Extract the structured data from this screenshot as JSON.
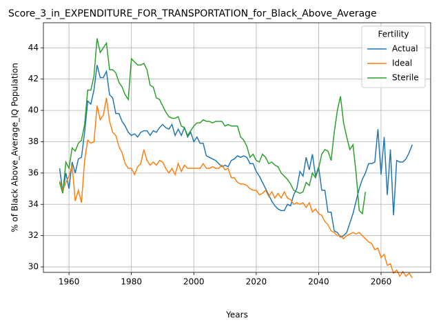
{
  "chart_data": {
    "type": "line",
    "title": "Score_3_in_EXPENDITURE_FOR_TRANSPORTATION_for_Black_Above_Average",
    "x_label": "Years",
    "y_label": "% of Black Above_Average_IQ Population",
    "legend_title": "Fertility",
    "legend": "upper right",
    "grid": true,
    "x": [
      1957,
      1958,
      1959,
      1960,
      1961,
      1962,
      1963,
      1964,
      1965,
      1966,
      1967,
      1968,
      1969,
      1970,
      1971,
      1972,
      1973,
      1974,
      1975,
      1976,
      1977,
      1978,
      1979,
      1980,
      1981,
      1982,
      1983,
      1984,
      1985,
      1986,
      1987,
      1988,
      1989,
      1990,
      1991,
      1992,
      1993,
      1994,
      1995,
      1996,
      1997,
      1998,
      1999,
      2000,
      2001,
      2002,
      2003,
      2004,
      2005,
      2006,
      2007,
      2008,
      2009,
      2010,
      2011,
      2012,
      2013,
      2014,
      2015,
      2016,
      2017,
      2018,
      2019,
      2020,
      2021,
      2022,
      2023,
      2024,
      2025,
      2026,
      2027,
      2028,
      2029,
      2030,
      2031,
      2032,
      2033,
      2034,
      2035,
      2036,
      2037,
      2038,
      2039,
      2040,
      2041,
      2042,
      2043,
      2044,
      2045,
      2046,
      2047,
      2048,
      2049,
      2050,
      2051,
      2052,
      2053,
      2054,
      2055,
      2056,
      2057,
      2058,
      2059,
      2060,
      2061,
      2062,
      2063,
      2064,
      2065,
      2066,
      2067,
      2068,
      2069,
      2070
    ],
    "series": [
      {
        "name": "Actual",
        "color": "#1f77b4",
        "values": [
          36.3,
          34.8,
          36.0,
          35.0,
          36.7,
          36.0,
          36.9,
          37.0,
          38.6,
          40.6,
          40.4,
          41.3,
          42.9,
          42.1,
          42.1,
          42.5,
          41.0,
          40.8,
          39.8,
          39.8,
          39.3,
          39.0,
          38.6,
          38.4,
          38.5,
          38.3,
          38.6,
          38.7,
          38.7,
          38.4,
          38.7,
          38.6,
          38.9,
          39.1,
          38.9,
          38.8,
          39.1,
          38.4,
          38.8,
          38.4,
          38.9,
          38.3,
          38.6,
          38.0,
          38.3,
          37.9,
          37.9,
          37.1,
          37.0,
          36.9,
          36.8,
          36.6,
          36.4,
          36.5,
          36.4,
          36.8,
          36.9,
          37.1,
          37.0,
          37.1,
          37.0,
          36.6,
          36.6,
          36.1,
          35.8,
          35.4,
          35.0,
          34.6,
          34.2,
          33.9,
          33.7,
          33.6,
          33.6,
          34.0,
          33.9,
          34.6,
          35.0,
          36.1,
          35.8,
          37.0,
          36.2,
          37.2,
          35.8,
          36.4,
          34.9,
          34.9,
          33.5,
          33.5,
          32.3,
          32.2,
          31.9,
          32.0,
          32.2,
          32.8,
          33.4,
          34.2,
          35.0,
          35.6,
          36.0,
          36.6,
          36.6,
          36.7,
          38.8,
          35.9,
          38.3,
          34.6,
          37.5,
          33.3,
          36.8,
          36.7,
          36.7,
          36.9,
          37.3,
          37.8
        ]
      },
      {
        "name": "Ideal",
        "color": "#ff7f0e",
        "values": [
          35.5,
          34.9,
          35.4,
          35.8,
          36.5,
          34.2,
          34.9,
          34.1,
          36.8,
          38.1,
          37.9,
          38.0,
          40.3,
          39.4,
          39.7,
          40.8,
          39.3,
          38.6,
          38.4,
          37.7,
          37.3,
          36.6,
          36.3,
          36.3,
          35.9,
          36.4,
          36.6,
          37.5,
          36.8,
          36.5,
          36.7,
          36.5,
          36.8,
          36.7,
          36.3,
          36.0,
          36.3,
          35.9,
          36.6,
          36.1,
          36.5,
          36.3,
          36.3,
          36.3,
          36.3,
          36.3,
          36.6,
          36.3,
          36.3,
          36.4,
          36.3,
          36.3,
          36.5,
          36.2,
          36.3,
          35.7,
          35.7,
          35.4,
          35.3,
          35.3,
          35.2,
          35.0,
          34.9,
          34.9,
          34.6,
          34.7,
          34.9,
          34.5,
          34.8,
          34.4,
          34.7,
          34.4,
          34.8,
          34.4,
          34.3,
          34.0,
          34.1,
          34.0,
          34.1,
          33.8,
          34.1,
          33.5,
          33.7,
          33.4,
          33.3,
          32.9,
          32.7,
          32.3,
          32.2,
          32.0,
          32.0,
          31.8,
          32.0,
          32.1,
          32.2,
          32.1,
          32.2,
          32.0,
          31.8,
          31.6,
          31.5,
          31.1,
          31.2,
          30.6,
          30.8,
          30.1,
          30.2,
          29.6,
          29.8,
          29.4,
          29.7,
          29.4,
          29.6,
          29.3
        ]
      },
      {
        "name": "Sterile",
        "color": "#2ca02c",
        "values": [
          35.4,
          34.7,
          36.7,
          36.3,
          37.6,
          37.4,
          37.9,
          38.1,
          39.1,
          41.3,
          41.3,
          42.2,
          44.6,
          43.7,
          44.0,
          44.3,
          42.6,
          42.6,
          42.4,
          41.8,
          41.5,
          41.0,
          40.7,
          43.3,
          43.1,
          42.9,
          42.9,
          43.0,
          42.6,
          41.6,
          41.5,
          40.8,
          40.7,
          40.3,
          39.9,
          39.6,
          39.5,
          39.5,
          39.6,
          39.0,
          38.9,
          38.4,
          38.7,
          39.0,
          39.2,
          39.2,
          39.4,
          39.3,
          39.3,
          39.2,
          39.3,
          39.3,
          39.3,
          39.0,
          39.1,
          39.0,
          39.0,
          39.0,
          38.3,
          38.1,
          37.7,
          37.0,
          37.2,
          36.8,
          36.7,
          37.2,
          37.0,
          36.6,
          36.7,
          36.5,
          36.4,
          36.0,
          35.8,
          35.6,
          35.3,
          34.9,
          34.8,
          34.7,
          34.8,
          35.4,
          35.2,
          36.0,
          35.7,
          36.3,
          37.2,
          37.5,
          37.4,
          36.8,
          38.6,
          40.0,
          40.9,
          39.2,
          38.3,
          37.5,
          37.8,
          36.0,
          33.6,
          33.4,
          34.8,
          null,
          null,
          null,
          null,
          null,
          null,
          null,
          null,
          null,
          null,
          null,
          null,
          null,
          null,
          null
        ]
      }
    ],
    "xlim": [
      1951.8,
      2075.9
    ],
    "xticks": [
      1960,
      1980,
      2000,
      2020,
      2040,
      2060
    ],
    "ylim": [
      29.65,
      45.6
    ],
    "yticks": [
      30,
      32,
      34,
      36,
      38,
      40,
      42,
      44
    ]
  }
}
